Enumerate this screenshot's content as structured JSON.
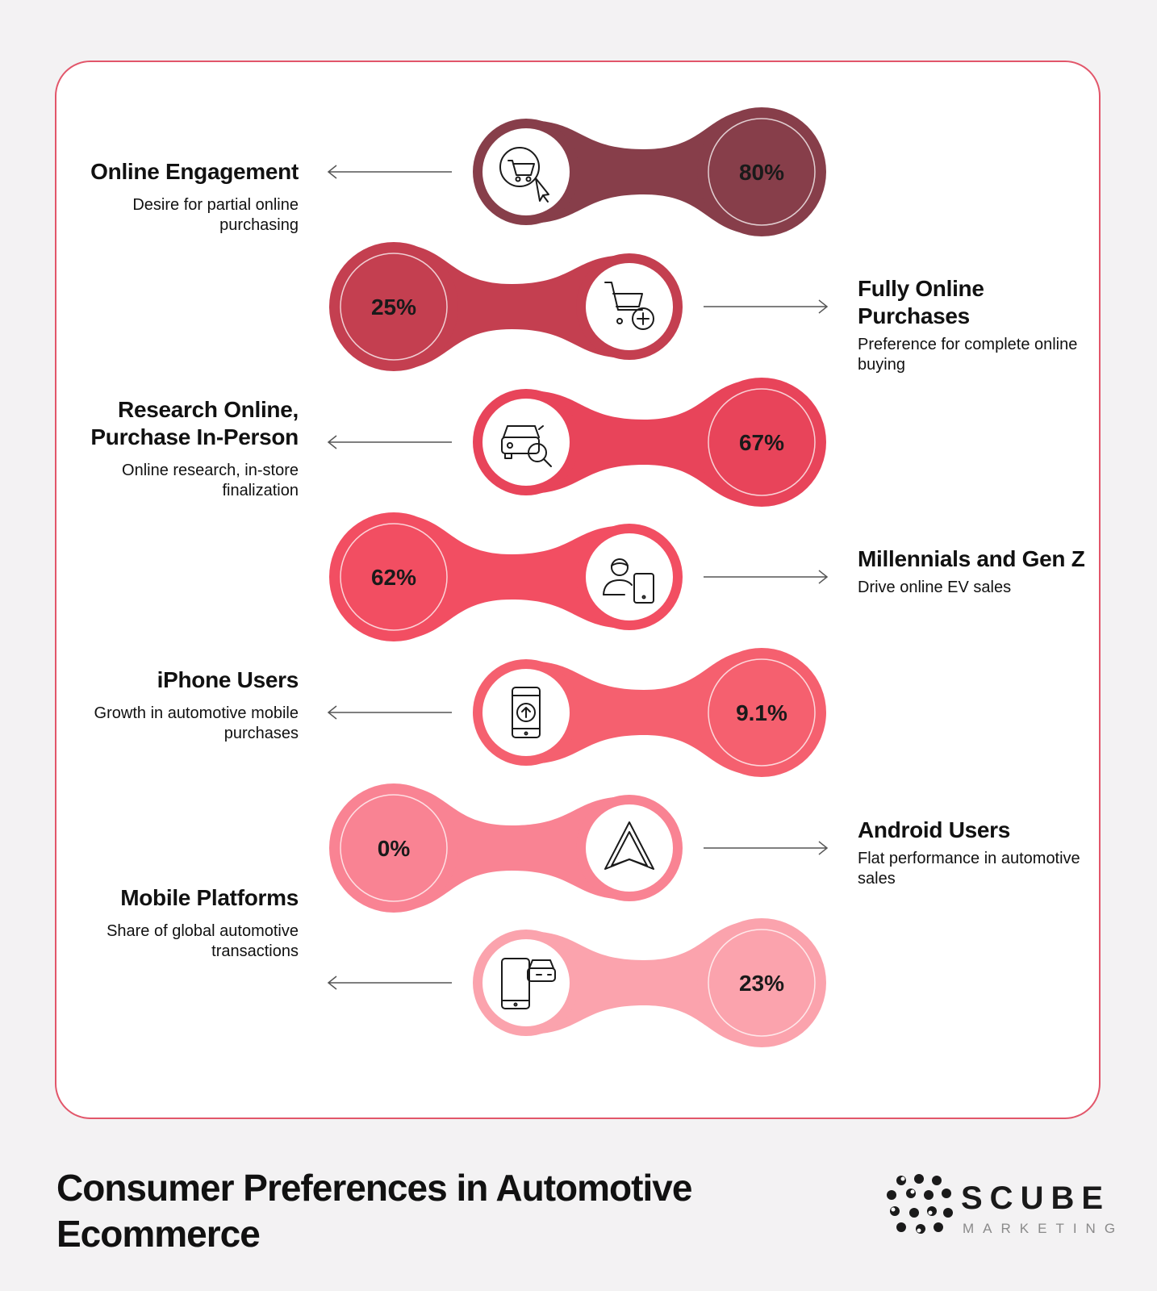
{
  "rows": [
    {
      "value": "80%",
      "title": "Online Engagement",
      "desc": "Desire for partial online purchasing",
      "icon": "cart-cursor-icon",
      "color": "#873e4a",
      "side": "left"
    },
    {
      "value": "25%",
      "title": "Fully Online Purchases",
      "desc": "Preference for complete online buying",
      "icon": "cart-plus-icon",
      "color": "#c43f50",
      "side": "right"
    },
    {
      "value": "67%",
      "title": "Research Online, Purchase In-Person",
      "desc": "Online research, in-store finalization",
      "icon": "car-search-icon",
      "color": "#e8445a",
      "side": "left"
    },
    {
      "value": "62%",
      "title": "Millennials and Gen Z",
      "desc": "Drive online EV sales",
      "icon": "person-tablet-icon",
      "color": "#f24e62",
      "side": "right"
    },
    {
      "value": "9.1%",
      "title": "iPhone Users",
      "desc": "Growth in automotive mobile purchases",
      "icon": "phone-upload-icon",
      "color": "#f5606f",
      "side": "left"
    },
    {
      "value": "0%",
      "title": "Android Users",
      "desc": "Flat performance in automotive sales",
      "icon": "android-auto-icon",
      "color": "#f98393",
      "side": "right"
    },
    {
      "value": "23%",
      "title": "Mobile Platforms",
      "desc": "Share of global automotive transactions",
      "icon": "phone-car-icon",
      "color": "#fba3ad",
      "side": "left"
    }
  ],
  "footer": {
    "title": "Consumer Preferences in Automotive Ecommerce",
    "brand": "SCUBE",
    "brand_sub": "MARKETING"
  }
}
